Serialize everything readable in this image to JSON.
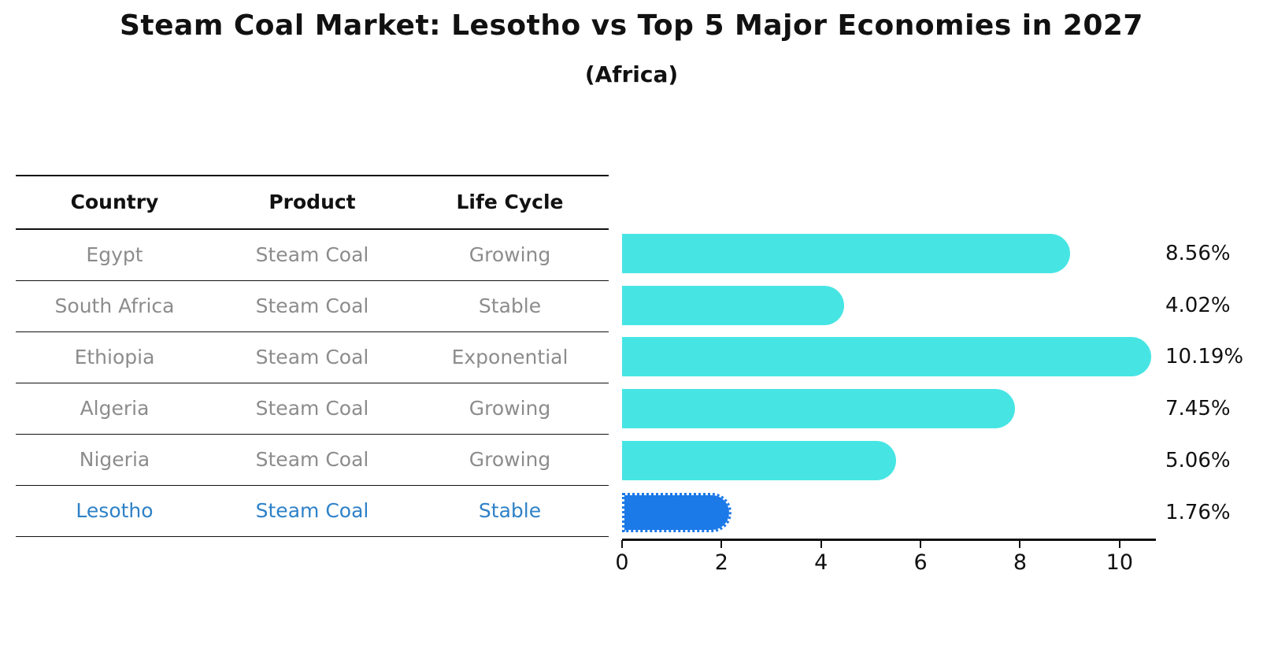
{
  "title": "Steam Coal Market: Lesotho vs Top 5 Major Economies in 2027",
  "subtitle": "(Africa)",
  "table": {
    "headers": [
      "Country",
      "Product",
      "Life Cycle"
    ],
    "rows": [
      {
        "country": "Egypt",
        "product": "Steam Coal",
        "life_cycle": "Growing",
        "highlight": false
      },
      {
        "country": "South Africa",
        "product": "Steam Coal",
        "life_cycle": "Stable",
        "highlight": false
      },
      {
        "country": "Ethiopia",
        "product": "Steam Coal",
        "life_cycle": "Exponential",
        "highlight": false
      },
      {
        "country": "Algeria",
        "product": "Steam Coal",
        "life_cycle": "Growing",
        "highlight": false
      },
      {
        "country": "Nigeria",
        "product": "Steam Coal",
        "life_cycle": "Growing",
        "highlight": false
      },
      {
        "country": "Lesotho",
        "product": "Steam Coal",
        "life_cycle": "Stable",
        "highlight": true
      }
    ]
  },
  "chart_data": {
    "type": "bar",
    "orientation": "horizontal",
    "title": "Steam Coal Market: Lesotho vs Top 5 Major Economies in 2027",
    "subtitle": "(Africa)",
    "categories": [
      "Egypt",
      "South Africa",
      "Ethiopia",
      "Algeria",
      "Nigeria",
      "Lesotho"
    ],
    "values": [
      8.56,
      4.02,
      10.19,
      7.45,
      5.06,
      1.76
    ],
    "value_labels": [
      "8.56%",
      "4.02%",
      "10.19%",
      "7.45%",
      "5.06%",
      "1.76%"
    ],
    "x_ticks": [
      "0",
      "2",
      "4",
      "6",
      "8",
      "10"
    ],
    "x_tick_values": [
      0,
      2,
      4,
      6,
      8,
      10
    ],
    "xlim": [
      0,
      10.73
    ],
    "grid": false,
    "legend": null,
    "bar_color": "#46E5E4",
    "highlight_color": "#1C79E8",
    "highlight_index": 5
  },
  "colors": {
    "bar_cyan": "#46E5E4",
    "bar_blue": "#1C79E8",
    "highlight_text": "#2E81C8",
    "muted_text": "#8C8C8C",
    "heading_text": "#111111",
    "axis": "#111111",
    "background": "#FFFFFF"
  }
}
